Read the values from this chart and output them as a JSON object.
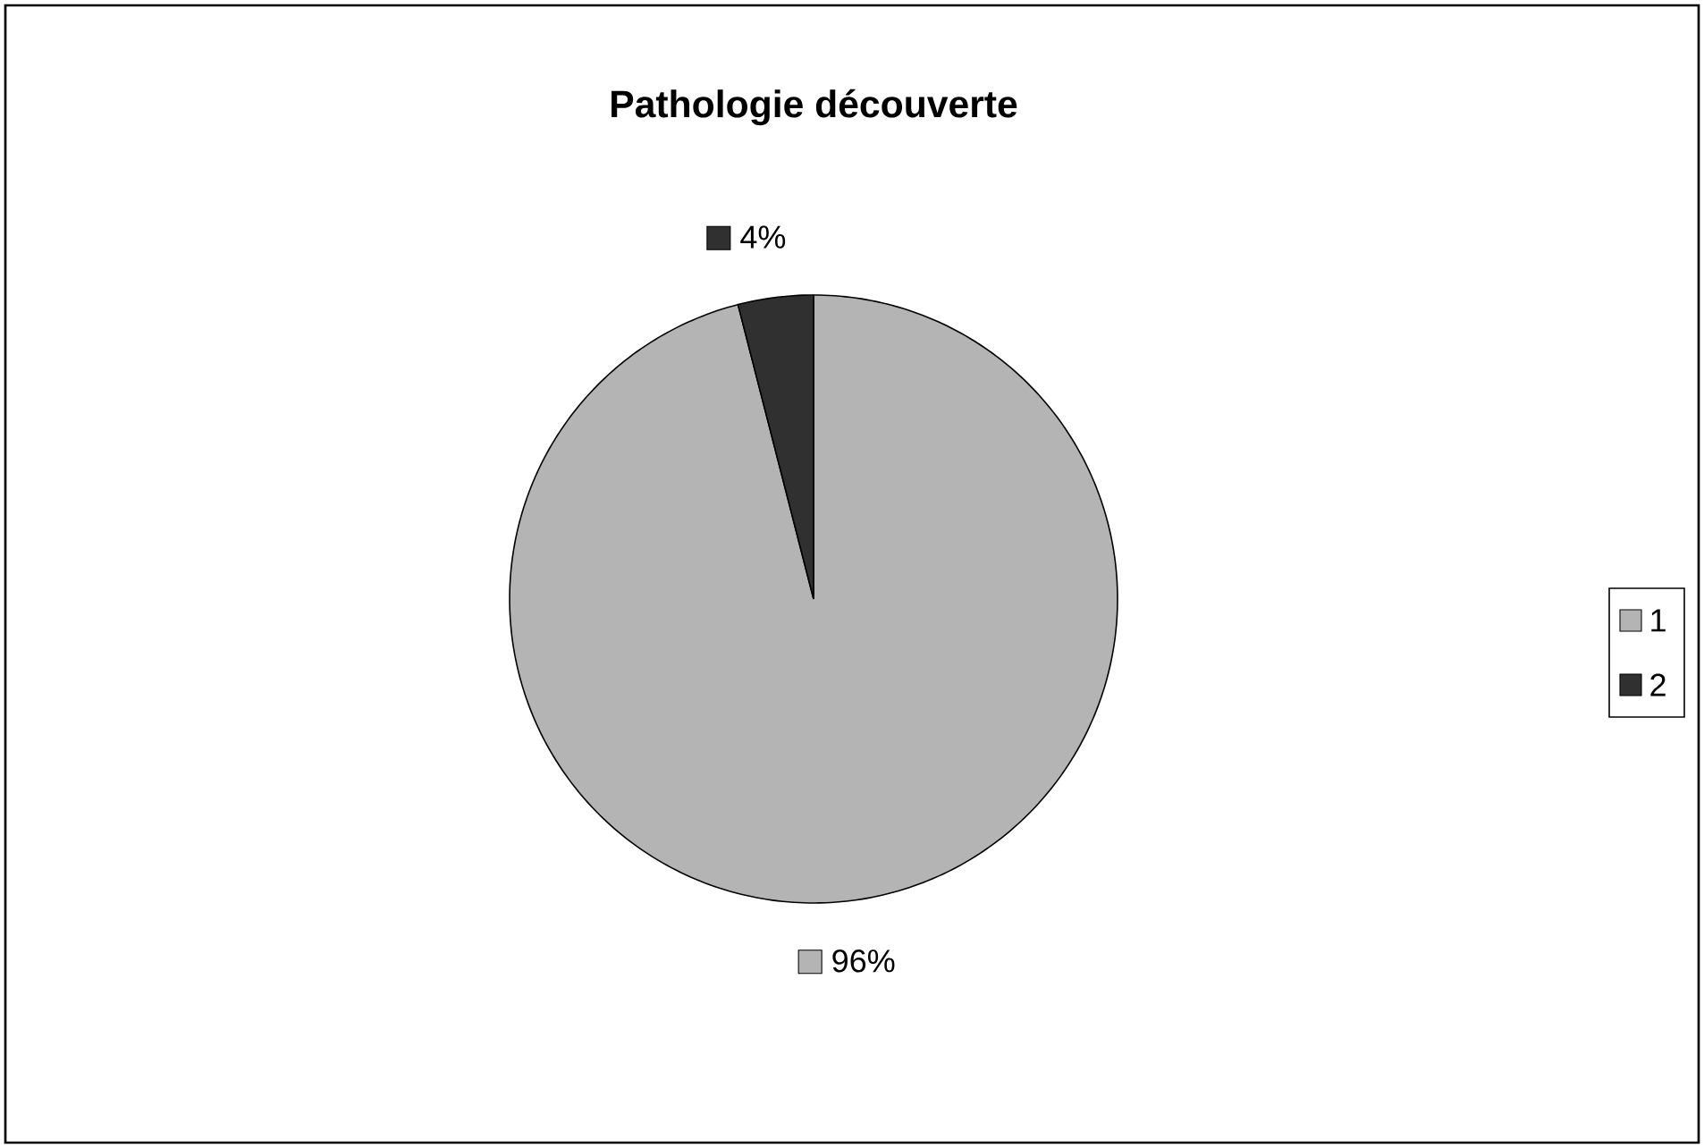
{
  "chart_data": {
    "type": "pie",
    "title": "Pathologie découverte",
    "categories": [
      "1",
      "2"
    ],
    "values": [
      96,
      4
    ],
    "value_labels": [
      "96%",
      "4%"
    ],
    "colors": [
      "#b4b4b4",
      "#303030"
    ],
    "legend": "right"
  }
}
